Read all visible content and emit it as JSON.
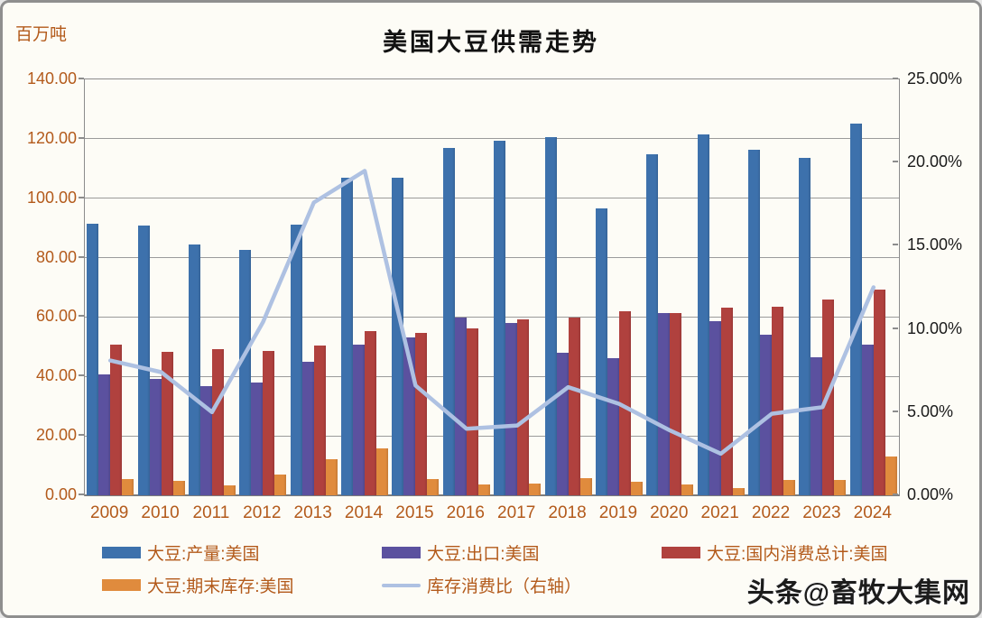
{
  "header": {
    "title": "美国大豆供需走势",
    "left_axis_unit": "百万吨"
  },
  "watermark": {
    "text": "头条@畜牧大集网"
  },
  "colors": {
    "production_blue": "#3d71ac",
    "export_purple": "#5b519f",
    "consumption_red": "#b0413e",
    "stocks_orange": "#e08b3d",
    "ratio_line_blue": "#aec1e2",
    "axis_text_orange": "#b35a1b",
    "right_axis_text": "#1a1a1a",
    "gridline_gray": "#9b9b9b"
  },
  "chart_data": {
    "type": "bar",
    "title": "美国大豆供需走势",
    "categories": [
      "2009",
      "2010",
      "2011",
      "2012",
      "2013",
      "2014",
      "2015",
      "2016",
      "2017",
      "2018",
      "2019",
      "2020",
      "2021",
      "2022",
      "2023",
      "2024"
    ],
    "series": [
      {
        "name": "大豆:产量:美国",
        "type": "bar",
        "axis": "left",
        "color": "#3d71ac",
        "values": [
          91.5,
          90.7,
          84.5,
          82.7,
          91.2,
          107.0,
          106.9,
          117.0,
          119.4,
          120.7,
          96.6,
          114.8,
          121.6,
          116.3,
          113.5,
          125.0
        ]
      },
      {
        "name": "大豆:出口:美国",
        "type": "bar",
        "axis": "left",
        "color": "#5b519f",
        "values": [
          40.6,
          39.3,
          36.6,
          37.9,
          44.9,
          50.7,
          53.1,
          59.8,
          58.0,
          48.0,
          46.2,
          61.3,
          58.6,
          54.1,
          46.5,
          50.7
        ]
      },
      {
        "name": "大豆:国内消费总计:美国",
        "type": "bar",
        "axis": "left",
        "color": "#b0413e",
        "values": [
          50.7,
          48.3,
          49.2,
          48.6,
          50.4,
          55.3,
          54.7,
          56.2,
          59.2,
          59.8,
          62.0,
          61.3,
          63.2,
          63.5,
          65.9,
          69.2
        ]
      },
      {
        "name": "大豆:期末库存:美国",
        "type": "bar",
        "axis": "left",
        "color": "#e08b3d",
        "values": [
          5.5,
          4.8,
          3.3,
          7.0,
          12.1,
          15.8,
          5.5,
          3.6,
          3.9,
          5.8,
          4.6,
          3.6,
          2.4,
          5.2,
          5.2,
          13.1
        ]
      },
      {
        "name": "库存消费比（右轴）",
        "type": "line",
        "axis": "right",
        "color": "#aec1e2",
        "values": [
          8.1,
          7.4,
          5.0,
          10.4,
          17.6,
          19.5,
          6.6,
          4.0,
          4.2,
          6.5,
          5.5,
          3.9,
          2.5,
          4.9,
          5.3,
          12.5
        ]
      }
    ],
    "left_axis": {
      "unit": "百万吨",
      "min": 0,
      "max": 140,
      "step": 20,
      "ticks": [
        "0.00",
        "20.00",
        "40.00",
        "60.00",
        "80.00",
        "100.00",
        "120.00",
        "140.00"
      ]
    },
    "right_axis": {
      "min": 0,
      "max": 25,
      "step": 5,
      "ticks": [
        "0.00%",
        "5.00%",
        "10.00%",
        "15.00%",
        "20.00%",
        "25.00%"
      ]
    },
    "grid": true,
    "legend_position": "bottom"
  }
}
